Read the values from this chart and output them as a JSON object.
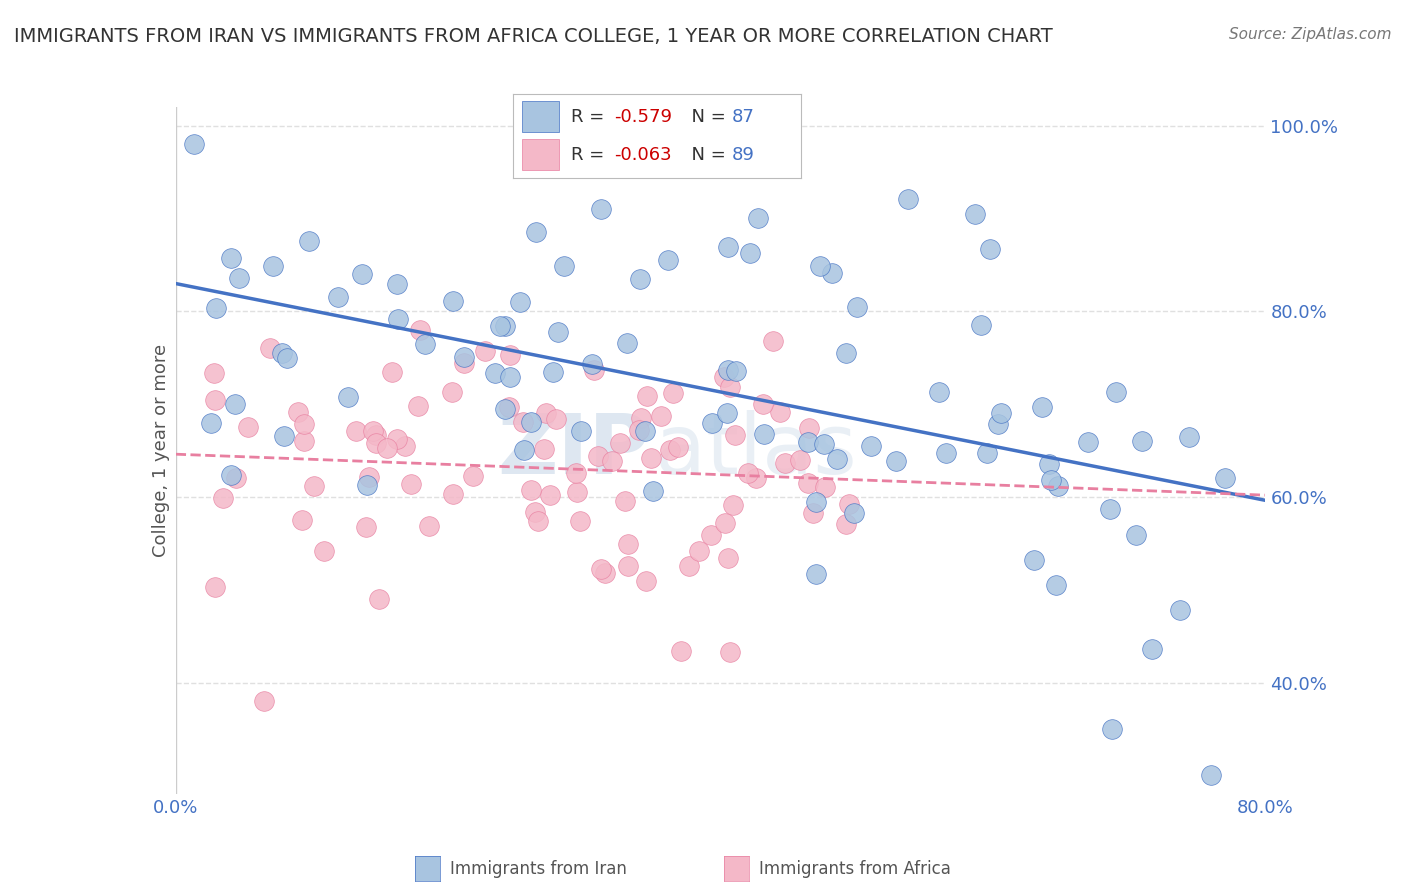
{
  "title": "IMMIGRANTS FROM IRAN VS IMMIGRANTS FROM AFRICA COLLEGE, 1 YEAR OR MORE CORRELATION CHART",
  "source": "Source: ZipAtlas.com",
  "ylabel_left": "College, 1 year or more",
  "watermark_zip": "ZIP",
  "watermark_atlas": "atlas",
  "legend_iran": {
    "R": -0.579,
    "N": 87,
    "color": "#a8c4e0",
    "line_color": "#4472c4"
  },
  "legend_africa": {
    "R": -0.063,
    "N": 89,
    "color": "#f4b8c8",
    "line_color": "#e87fa0"
  },
  "xmin": 0.0,
  "xmax": 0.8,
  "ymin": 0.28,
  "ymax": 1.02,
  "right_yticks": [
    0.4,
    0.6,
    0.8,
    1.0
  ],
  "right_yticklabels": [
    "40.0%",
    "60.0%",
    "80.0%",
    "100.0%"
  ],
  "xticks": [
    0.0,
    0.1,
    0.2,
    0.3,
    0.4,
    0.5,
    0.6,
    0.7,
    0.8
  ],
  "xticklabels": [
    "0.0%",
    "",
    "",
    "",
    "",
    "",
    "",
    "",
    "80.0%"
  ],
  "background_color": "#ffffff",
  "grid_color": "#e0e0e0",
  "title_color": "#333333"
}
